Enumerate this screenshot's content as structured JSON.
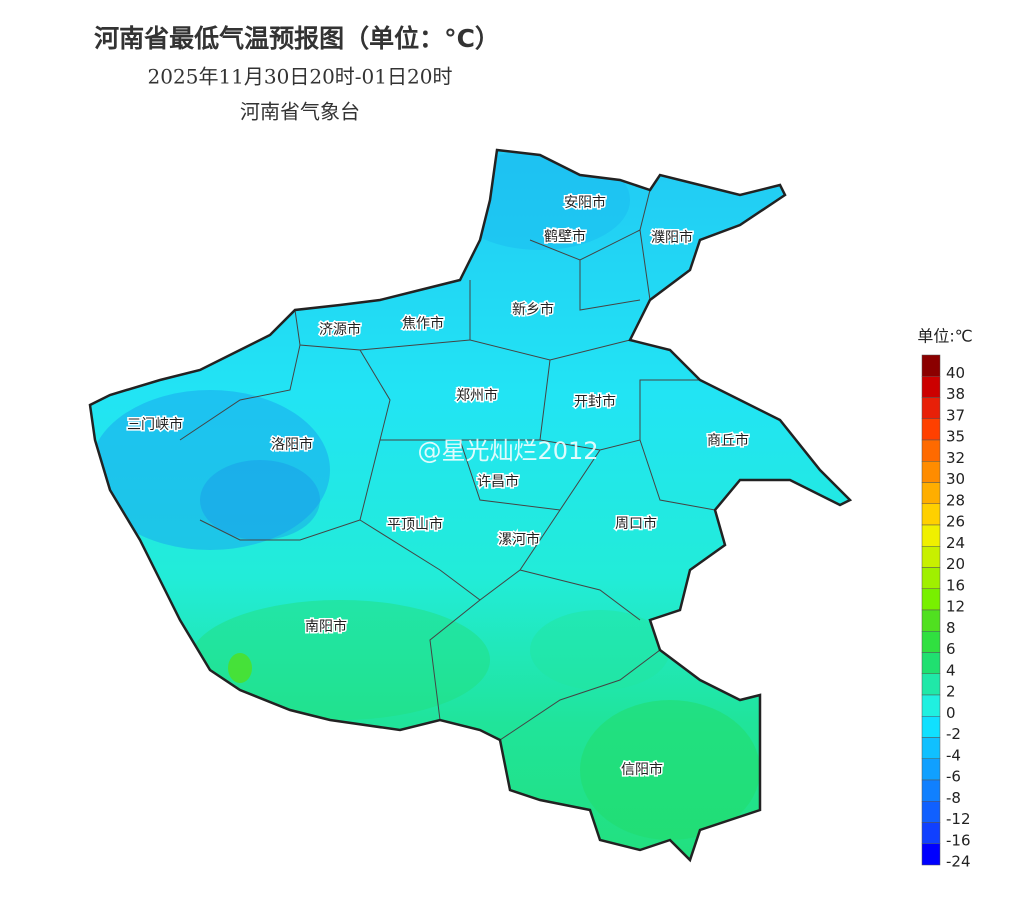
{
  "header": {
    "title": "河南省最低气温预报图（单位：°C）",
    "subtitle": "2025年11月30日20时-01日20时",
    "issuer": "河南省气象台"
  },
  "watermark": "@星光灿烂2012",
  "cities": [
    "安阳市",
    "鹤壁市",
    "濮阳市",
    "新乡市",
    "济源市",
    "焦作市",
    "郑州市",
    "开封市",
    "三门峡市",
    "洛阳市",
    "商丘市",
    "许昌市",
    "平顶山市",
    "漯河市",
    "周口市",
    "南阳市",
    "信阳市"
  ],
  "legend": {
    "title": "单位:℃",
    "items": [
      {
        "value": 40,
        "color": "#8b0000"
      },
      {
        "value": 38,
        "color": "#cc0000"
      },
      {
        "value": 37,
        "color": "#e82008"
      },
      {
        "value": 35,
        "color": "#ff4000"
      },
      {
        "value": 32,
        "color": "#ff6a00"
      },
      {
        "value": 30,
        "color": "#ff8c00"
      },
      {
        "value": 28,
        "color": "#ffae00"
      },
      {
        "value": 26,
        "color": "#ffd000"
      },
      {
        "value": 24,
        "color": "#f0f000"
      },
      {
        "value": 20,
        "color": "#c8f000"
      },
      {
        "value": 16,
        "color": "#a0f000"
      },
      {
        "value": 12,
        "color": "#78f000"
      },
      {
        "value": 8,
        "color": "#50e020"
      },
      {
        "value": 6,
        "color": "#30e040"
      },
      {
        "value": 4,
        "color": "#20e070"
      },
      {
        "value": 2,
        "color": "#20e8a8"
      },
      {
        "value": 0,
        "color": "#20f0e0"
      },
      {
        "value": -2,
        "color": "#10e0ff"
      },
      {
        "value": -4,
        "color": "#10c0ff"
      },
      {
        "value": -6,
        "color": "#10a0ff"
      },
      {
        "value": -8,
        "color": "#1080ff"
      },
      {
        "value": -12,
        "color": "#1060ff"
      },
      {
        "value": -16,
        "color": "#1040ff"
      },
      {
        "value": -24,
        "color": "#0000ff"
      }
    ]
  }
}
